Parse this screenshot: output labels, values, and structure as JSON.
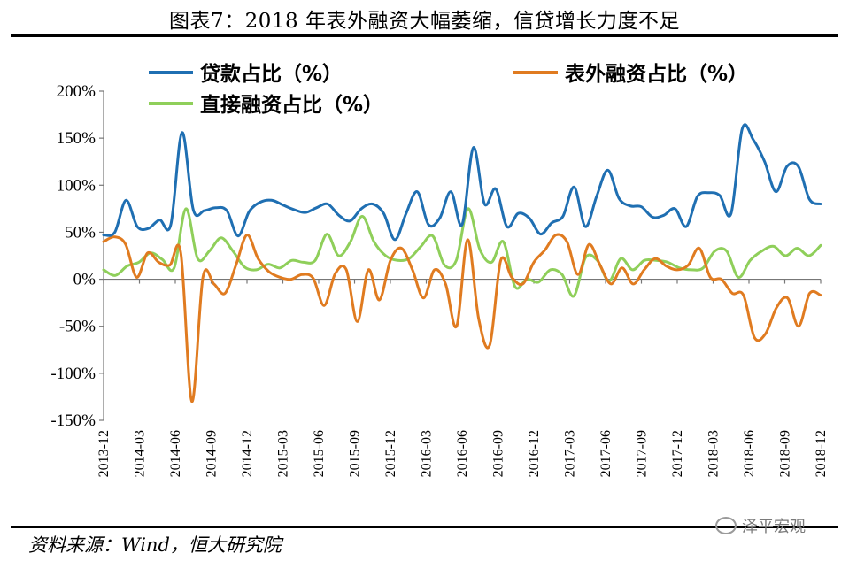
{
  "title": "图表7：2018 年表外融资大幅萎缩，信贷增长力度不足",
  "source": "资料来源：Wind，恒大研究院",
  "watermark": "泽平宏观",
  "chart_data": {
    "type": "line",
    "title": "图表7：2018 年表外融资大幅萎缩，信贷增长力度不足",
    "ylabel": "",
    "xlabel": "",
    "ylim": [
      -150,
      200
    ],
    "yticks": [
      -150,
      -100,
      -50,
      0,
      50,
      100,
      150,
      200
    ],
    "ytick_labels": [
      "-150%",
      "-100%",
      "-50%",
      "0%",
      "50%",
      "100%",
      "150%",
      "200%"
    ],
    "xtick_labels": [
      "2013-12",
      "2014-03",
      "2014-06",
      "2014-09",
      "2014-12",
      "2015-03",
      "2015-06",
      "2015-09",
      "2015-12",
      "2016-03",
      "2016-06",
      "2016-09",
      "2016-12",
      "2017-03",
      "2017-06",
      "2017-09",
      "2017-12",
      "2018-03",
      "2018-06",
      "2018-09",
      "2018-12"
    ],
    "legend_position": "top",
    "series": [
      {
        "name": "贷款占比（%）",
        "color": "#1f6fb2",
        "values": [
          47,
          50,
          84,
          56,
          54,
          63,
          58,
          156,
          74,
          73,
          76,
          73,
          46,
          72,
          82,
          84,
          79,
          74,
          71,
          76,
          80,
          68,
          62,
          75,
          80,
          70,
          42,
          70,
          93,
          58,
          65,
          93,
          58,
          140,
          80,
          96,
          56,
          70,
          65,
          48,
          60,
          67,
          98,
          56,
          88,
          116,
          86,
          78,
          77,
          66,
          68,
          75,
          56,
          88,
          92,
          89,
          70,
          160,
          148,
          125,
          93,
          120,
          120,
          85,
          80
        ]
      },
      {
        "name": "表外融资占比（%）",
        "color": "#e07b20",
        "values": [
          40,
          45,
          37,
          2,
          28,
          18,
          15,
          28,
          -130,
          2,
          -5,
          -15,
          15,
          47,
          22,
          8,
          2,
          0,
          5,
          1,
          -28,
          6,
          10,
          -45,
          10,
          -22,
          20,
          33,
          10,
          -20,
          10,
          -5,
          -50,
          42,
          -42,
          -70,
          20,
          2,
          -5,
          18,
          31,
          47,
          40,
          5,
          37,
          15,
          -5,
          12,
          -5,
          10,
          22,
          14,
          10,
          15,
          33,
          2,
          0,
          -15,
          -17,
          -62,
          -58,
          -30,
          -20,
          -50,
          -15,
          -17
        ]
      },
      {
        "name": "直接融资占比（%）",
        "color": "#8fcf5a",
        "values": [
          10,
          4,
          14,
          18,
          28,
          21,
          12,
          75,
          22,
          30,
          44,
          30,
          13,
          10,
          16,
          12,
          20,
          18,
          20,
          48,
          25,
          40,
          67,
          40,
          25,
          20,
          22,
          35,
          46,
          15,
          20,
          75,
          32,
          18,
          40,
          -8,
          0,
          -3,
          10,
          5,
          -18,
          23,
          20,
          -2,
          22,
          10,
          20,
          20,
          18,
          12,
          10,
          12,
          30,
          30,
          2,
          20,
          30,
          35,
          25,
          33,
          25,
          36
        ]
      }
    ]
  }
}
